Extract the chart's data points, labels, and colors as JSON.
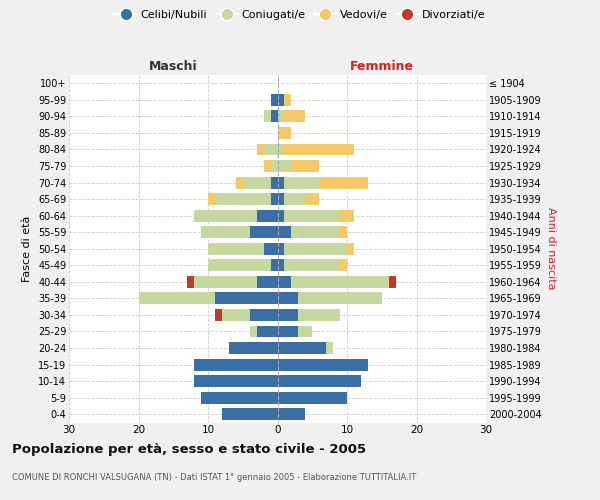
{
  "age_groups": [
    "100+",
    "95-99",
    "90-94",
    "85-89",
    "80-84",
    "75-79",
    "70-74",
    "65-69",
    "60-64",
    "55-59",
    "50-54",
    "45-49",
    "40-44",
    "35-39",
    "30-34",
    "25-29",
    "20-24",
    "15-19",
    "10-14",
    "5-9",
    "0-4"
  ],
  "birth_years": [
    "≤ 1904",
    "1905-1909",
    "1910-1914",
    "1915-1919",
    "1920-1924",
    "1925-1929",
    "1930-1934",
    "1935-1939",
    "1940-1944",
    "1945-1949",
    "1950-1954",
    "1955-1959",
    "1960-1964",
    "1965-1969",
    "1970-1974",
    "1975-1979",
    "1980-1984",
    "1985-1989",
    "1990-1994",
    "1995-1999",
    "2000-2004"
  ],
  "maschi": {
    "celibi": [
      0,
      1,
      1,
      0,
      0,
      0,
      1,
      1,
      3,
      4,
      2,
      1,
      3,
      9,
      4,
      3,
      7,
      12,
      12,
      11,
      8
    ],
    "coniugati": [
      0,
      0,
      1,
      0,
      2,
      1,
      4,
      8,
      9,
      7,
      8,
      9,
      9,
      11,
      4,
      1,
      0,
      0,
      0,
      0,
      0
    ],
    "vedovi": [
      0,
      0,
      0,
      0,
      1,
      1,
      1,
      1,
      0,
      0,
      0,
      0,
      0,
      0,
      0,
      0,
      0,
      0,
      0,
      0,
      0
    ],
    "divorziati": [
      0,
      0,
      0,
      0,
      0,
      0,
      0,
      0,
      0,
      0,
      0,
      0,
      1,
      0,
      1,
      0,
      0,
      0,
      0,
      0,
      0
    ]
  },
  "femmine": {
    "nubili": [
      0,
      1,
      0,
      0,
      0,
      0,
      1,
      1,
      1,
      2,
      1,
      1,
      2,
      3,
      3,
      3,
      7,
      13,
      12,
      10,
      4
    ],
    "coniugate": [
      0,
      0,
      1,
      0,
      1,
      2,
      5,
      3,
      8,
      7,
      9,
      8,
      14,
      12,
      6,
      2,
      1,
      0,
      0,
      0,
      0
    ],
    "vedove": [
      0,
      1,
      3,
      2,
      10,
      4,
      7,
      2,
      2,
      1,
      1,
      1,
      0,
      0,
      0,
      0,
      0,
      0,
      0,
      0,
      0
    ],
    "divorziate": [
      0,
      0,
      0,
      0,
      0,
      0,
      0,
      0,
      0,
      0,
      0,
      0,
      1,
      0,
      0,
      0,
      0,
      0,
      0,
      0,
      0
    ]
  },
  "colors": {
    "celibi_nubili": "#3a6ea5",
    "coniugati": "#c5d8a0",
    "vedovi": "#f5c96a",
    "divorziati": "#c0392b"
  },
  "title": "Popolazione per età, sesso e stato civile - 2005",
  "subtitle": "COMUNE DI RONCHI VALSUGANA (TN) - Dati ISTAT 1° gennaio 2005 - Elaborazione TUTTITALIA.IT",
  "xlabel_left": "Maschi",
  "xlabel_right": "Femmine",
  "ylabel_left": "Fasce di età",
  "ylabel_right": "Anni di nascita",
  "xlim": 30,
  "background_color": "#f0f0f0",
  "plot_bg": "#ffffff"
}
